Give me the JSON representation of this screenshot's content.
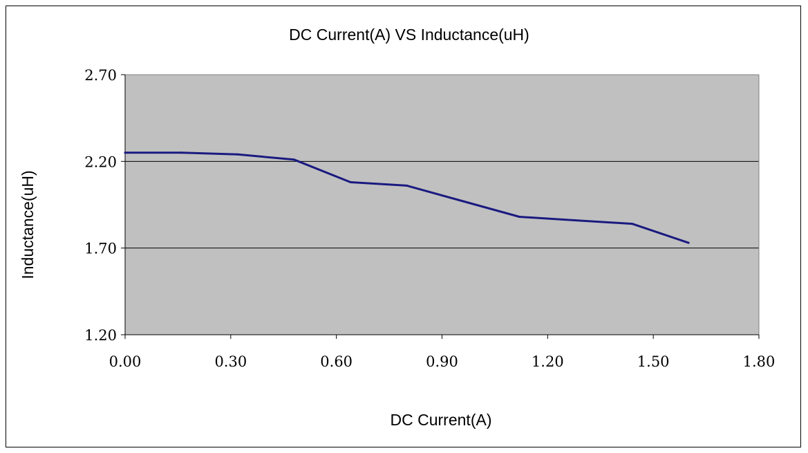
{
  "chart_data": {
    "type": "line",
    "title": "DC Current(A) VS Inductance(uH)",
    "xlabel": "DC Current(A)",
    "ylabel": "Inductance(uH)",
    "xlim": [
      0.0,
      1.8
    ],
    "ylim": [
      1.2,
      2.7
    ],
    "x_ticks": [
      "0.00",
      "0.30",
      "0.60",
      "0.90",
      "1.20",
      "1.50",
      "1.80"
    ],
    "y_ticks": [
      "2.70",
      "2.20",
      "1.70",
      "1.20"
    ],
    "grid": "horizontal",
    "legend": "none",
    "series": [
      {
        "x": [
          0.0,
          0.16,
          0.32,
          0.48,
          0.64,
          0.8,
          0.96,
          1.12,
          1.28,
          1.44,
          1.6
        ],
        "y": [
          2.25,
          2.25,
          2.24,
          2.21,
          2.08,
          2.06,
          1.97,
          1.88,
          1.86,
          1.84,
          1.73
        ]
      }
    ],
    "colors": {
      "plot_background": "#c0c0c0",
      "line": "#1a1a80",
      "grid": "#000000"
    }
  }
}
